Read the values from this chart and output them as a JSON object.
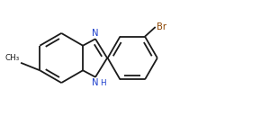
{
  "bg_color": "#ffffff",
  "bond_color": "#1a1a1a",
  "n_color": "#1a3ccc",
  "br_color": "#8b4400",
  "bond_lw": 1.3,
  "dbo": 0.018,
  "figsize": [
    3.0,
    1.29
  ],
  "dpi": 100,
  "xlim": [
    0.15,
    2.85
  ],
  "ylim": [
    0.05,
    1.24
  ]
}
